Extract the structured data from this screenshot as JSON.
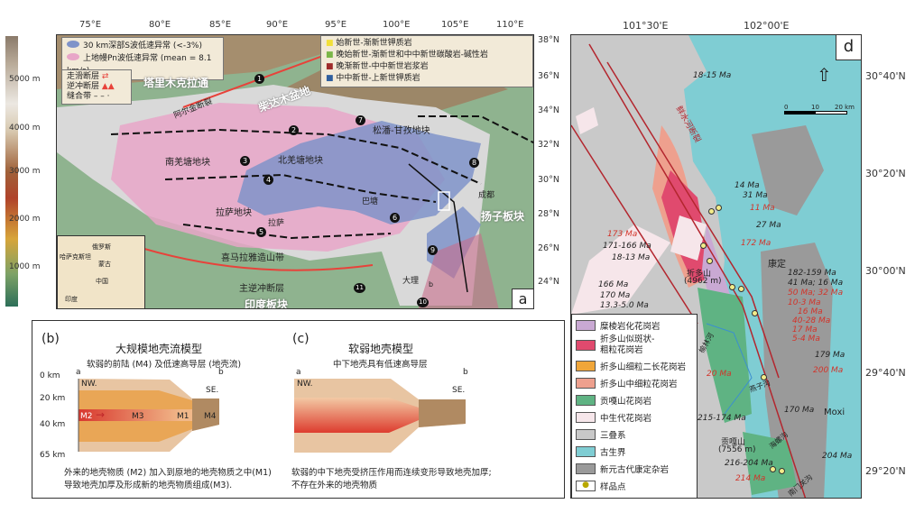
{
  "elevation_bar": {
    "ticks": [
      "5000 m",
      "4000 m",
      "3000 m",
      "2000 m",
      "1000 m"
    ]
  },
  "panel_a": {
    "label": "a",
    "longitudes": [
      "75°E",
      "80°E",
      "85°E",
      "90°E",
      "95°E",
      "100°E",
      "105°E",
      "110°E"
    ],
    "latitudes": [
      "38°N",
      "36°N",
      "34°N",
      "32°N",
      "30°N",
      "28°N",
      "26°N",
      "24°N"
    ],
    "legend_left": [
      "30 km深部S波低速异常 (<-3%)",
      "上地幔Pn波低速异常 (mean = 8.1 km/s)"
    ],
    "legend_faults": [
      "走滑断层",
      "逆冲断层",
      "缝合带"
    ],
    "legend_right": [
      "始新世-渐新世钾质岩",
      "晚始新世-渐新世和中中新世碳酸岩-碱性岩",
      "晚渐新世-中中新世岩浆岩",
      "中中新世-上新世钾质岩"
    ],
    "legend_colors": {
      "s_wave": "#7f93c9",
      "pn_wave": "#e8a6c8",
      "potassic_eocene": "#f2e03a",
      "carbonatite": "#7ab648",
      "magmatic": "#9e2a2a",
      "potassic_miocene": "#2f5f9e"
    },
    "places": {
      "tarim": "塔里木克拉通",
      "qaidam": "柴达木盆地",
      "altyn": "阿尔金断裂",
      "songpan": "松潘-甘孜地块",
      "south_qiangtang": "南羌塘地块",
      "north_qiangtang": "北羌塘地块",
      "lhasa_block": "拉萨地块",
      "lhasa": "拉萨",
      "himalaya": "喜马拉雅造山带",
      "mbt": "主逆冲断层",
      "india": "印度板块",
      "yangtze": "扬子板块",
      "chengdu": "成都",
      "batang": "巴塘",
      "dali": "大理",
      "profile_b": "b"
    },
    "suture_numbers": [
      "1",
      "2",
      "3",
      "4",
      "5",
      "6",
      "7",
      "8",
      "9",
      "10",
      "11"
    ],
    "inset": [
      "俄罗斯",
      "哈萨克斯坦",
      "蒙古",
      "中国",
      "印度"
    ]
  },
  "panel_b": {
    "label": "(b)",
    "title": "大规模地壳流模型",
    "subtitle": "软弱的前陆 (M4) 及低速高导层 (地壳流)",
    "depths": [
      "0 km",
      "20 km",
      "40 km",
      "65 km"
    ],
    "ends": [
      "a",
      "b"
    ],
    "dirs": [
      "NW.",
      "SE."
    ],
    "units": [
      "M2",
      "M3",
      "M1",
      "M4"
    ],
    "caption": [
      "外来的地壳物质 (M2) 加入到原地的地壳物质之中(M1)",
      "导致地壳加厚及形成新的地壳物质组成(M3)."
    ]
  },
  "panel_c": {
    "label": "(c)",
    "title": "软弱地壳模型",
    "subtitle": "中下地壳具有低速高导层",
    "ends": [
      "a",
      "b"
    ],
    "dirs": [
      "NW.",
      "SE."
    ],
    "caption": [
      "软弱的中下地壳受挤压作用而连续变形导致地壳加厚;",
      "不存在外来的地壳物质"
    ]
  },
  "panel_d": {
    "label": "d",
    "longitudes": [
      "101°30'E",
      "102°00'E"
    ],
    "latitudes": [
      "30°40'N",
      "30°20'N",
      "30°00'N",
      "29°40'N",
      "29°20'N"
    ],
    "scale": [
      "0",
      "10",
      "20 km"
    ],
    "places": {
      "fault": "鲜水河断裂",
      "kangding": "康定",
      "zheduoshan": "折多山",
      "zheduoshan_elev": "(4962 m)",
      "gongga": "贡嘎山",
      "gongga_elev": "(7556 m)",
      "moxi": "Moxi",
      "yulin": "榆林河",
      "yanzigou": "燕子沟",
      "hailuogou": "海螺沟",
      "nanmenguan": "南门关沟"
    },
    "ages_black": [
      "18-15 Ma",
      "14 Ma",
      "31 Ma",
      "27 Ma",
      "171-166 Ma",
      "18-13 Ma",
      "166 Ma",
      "170 Ma",
      "13.3-5.0 Ma",
      "182-159 Ma",
      "41 Ma; 16 Ma",
      "179 Ma",
      "215-174 Ma",
      "170 Ma",
      "216-204 Ma",
      "204 Ma"
    ],
    "ages_red": [
      "11 Ma",
      "172 Ma",
      "173 Ma",
      "50 Ma; 32 Ma",
      "10-3 Ma",
      "16 Ma",
      "40-28 Ma",
      "17 Ma",
      "5-4 Ma",
      "20 Ma",
      "200 Ma",
      "214 Ma"
    ],
    "legend": [
      {
        "label": "糜棱岩化花岗岩",
        "color": "#c9a9d3"
      },
      {
        "label": "折多山似斑状-\n粗粒花岗岩",
        "color": "#e04a6e"
      },
      {
        "label": "折多山细粒二长花岗岩",
        "color": "#f0a63a"
      },
      {
        "label": "折多山中细粒花岗岩",
        "color": "#eea08e"
      },
      {
        "label": "贡嘎山花岗岩",
        "color": "#5fb383"
      },
      {
        "label": "中生代花岗岩",
        "color": "#f6e6ea"
      },
      {
        "label": "三叠系",
        "color": "#c8c8c8"
      },
      {
        "label": "古生界",
        "color": "#7fcdd3"
      },
      {
        "label": "新元古代康定杂岩",
        "color": "#9a9a9a"
      },
      {
        "label": "样品点",
        "color": "#f3ec8a"
      }
    ]
  }
}
